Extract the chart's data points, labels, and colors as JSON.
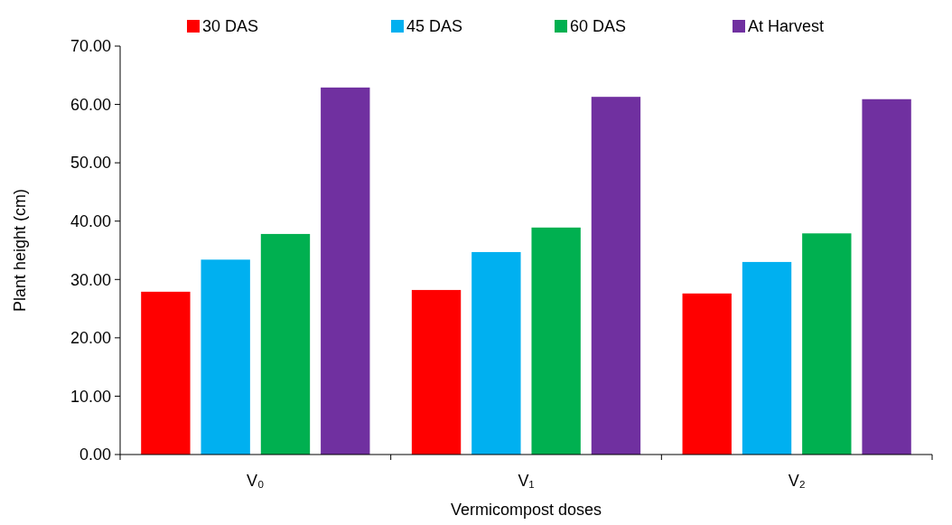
{
  "chart_data": {
    "type": "bar",
    "xlabel": "Vermicompost doses",
    "ylabel": "Plant height (cm)",
    "categories": [
      "V₀",
      "V₁",
      "V₂"
    ],
    "series": [
      {
        "name": "30 DAS",
        "color": "#ff0000",
        "values": [
          27.9,
          28.2,
          27.6
        ]
      },
      {
        "name": "45 DAS",
        "color": "#00b0f0",
        "values": [
          33.4,
          34.7,
          33.0
        ]
      },
      {
        "name": "60 DAS",
        "color": "#00b050",
        "values": [
          37.8,
          38.9,
          37.9
        ]
      },
      {
        "name": "At Harvest",
        "color": "#7030a0",
        "values": [
          62.9,
          61.3,
          60.9
        ]
      }
    ],
    "ylim": [
      0,
      70
    ],
    "yticks": [
      {
        "value": 0,
        "label": "0.00"
      },
      {
        "value": 10,
        "label": "10.00"
      },
      {
        "value": 20,
        "label": "20.00"
      },
      {
        "value": 30,
        "label": "30.00"
      },
      {
        "value": 40,
        "label": "40.00"
      },
      {
        "value": 50,
        "label": "50.00"
      },
      {
        "value": 60,
        "label": "60.00"
      },
      {
        "value": 70,
        "label": "70.00"
      }
    ],
    "grid": false,
    "legend": "top"
  }
}
